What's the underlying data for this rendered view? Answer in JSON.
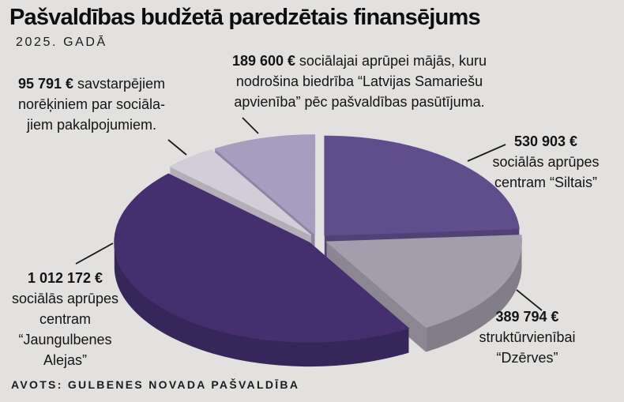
{
  "page": {
    "background": "#e2e1df",
    "text_color": "#161616"
  },
  "header": {
    "title": "Pašvaldības budžetā paredzētais finansējums",
    "subtitle": "2025. GADĀ"
  },
  "source": {
    "label": "AVOTS: GULBENES NOVADA PAŠVALDĪBA"
  },
  "chart_data": {
    "type": "pie",
    "style": "3d-exploded",
    "title": "Pašvaldības budžetā paredzētais finansējums",
    "subtitle": "2025. GADĀ",
    "unit": "€",
    "start_angle": "top",
    "direction": "clockwise",
    "slices": [
      {
        "label": "sociālās aprūpes centram “Siltais”",
        "value": 530903,
        "color": "#5f4d8c"
      },
      {
        "label": "struktūrvienībai “Dzērves”",
        "value": 389794,
        "color": "#a39eab"
      },
      {
        "label": "sociālās aprūpes centram “Jaungulbenes Alejas”",
        "value": 1012172,
        "color": "#452f6f"
      },
      {
        "label": "savstarpējiem norēķiniem par sociālajiem pakalpojumiem",
        "value": 95791,
        "color": "#d2cdd8"
      },
      {
        "label": "sociālajai aprūpei mājās, kuru nodrošina biedrība “Latvijas Samariešu apvienība” pēc pašvaldības pasūtījuma",
        "value": 189600,
        "color": "#a79dbf"
      }
    ]
  },
  "annotations": [
    {
      "amount": "189 600 €",
      "text1": "sociālajai aprūpei mājās, kuru",
      "line2": "nodrošina biedrība “Latvijas Samariešu",
      "line3": "apvienība” pēc pašvaldības pasūtījuma."
    },
    {
      "amount": "95 791 €",
      "text1": "savstarpējiem",
      "line2": "norēķiniem par sociāla-",
      "line3": "jiem pakalpojumiem."
    },
    {
      "amount": "530 903 €",
      "line2": "sociālās aprūpes",
      "line3": "centram “Siltais”"
    },
    {
      "amount": "389 794 €",
      "line2": "struktūrvienībai",
      "line3": "“Dzērves”"
    },
    {
      "amount": "1 012 172 €",
      "line2": "sociālās aprūpes",
      "line3": "centram",
      "line4": "“Jaungulbenes",
      "line5": "Alejas”"
    }
  ]
}
